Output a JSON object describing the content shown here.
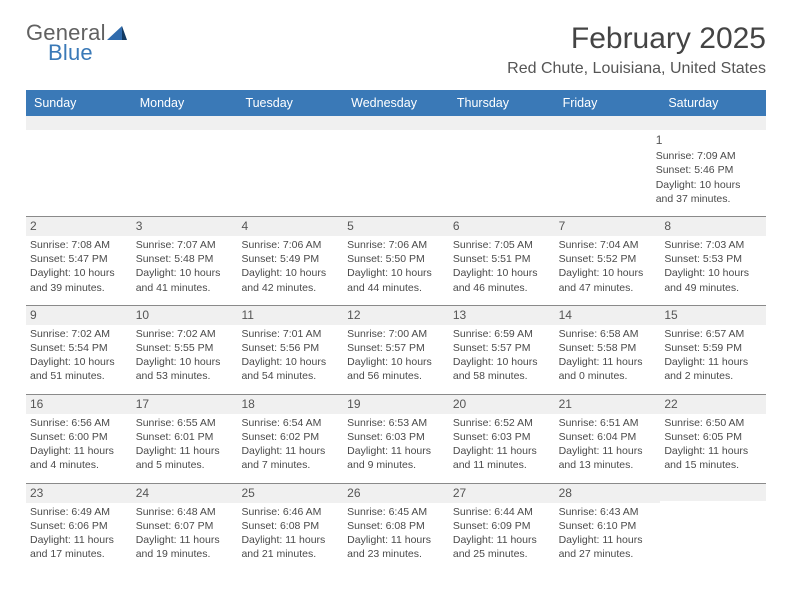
{
  "logo": {
    "general": "General",
    "blue": "Blue"
  },
  "header": {
    "month_title": "February 2025",
    "location": "Red Chute, Louisiana, United States"
  },
  "colors": {
    "header_bg": "#3a79b7",
    "header_text": "#ffffff",
    "band_bg": "#f0f0f0",
    "band_border": "#8a8a8a",
    "body_text": "#4a4a4a"
  },
  "weekdays": [
    "Sunday",
    "Monday",
    "Tuesday",
    "Wednesday",
    "Thursday",
    "Friday",
    "Saturday"
  ],
  "weeks": [
    [
      null,
      null,
      null,
      null,
      null,
      null,
      {
        "n": "1",
        "sunrise": "Sunrise: 7:09 AM",
        "sunset": "Sunset: 5:46 PM",
        "day1": "Daylight: 10 hours",
        "day2": "and 37 minutes."
      }
    ],
    [
      {
        "n": "2",
        "sunrise": "Sunrise: 7:08 AM",
        "sunset": "Sunset: 5:47 PM",
        "day1": "Daylight: 10 hours",
        "day2": "and 39 minutes."
      },
      {
        "n": "3",
        "sunrise": "Sunrise: 7:07 AM",
        "sunset": "Sunset: 5:48 PM",
        "day1": "Daylight: 10 hours",
        "day2": "and 41 minutes."
      },
      {
        "n": "4",
        "sunrise": "Sunrise: 7:06 AM",
        "sunset": "Sunset: 5:49 PM",
        "day1": "Daylight: 10 hours",
        "day2": "and 42 minutes."
      },
      {
        "n": "5",
        "sunrise": "Sunrise: 7:06 AM",
        "sunset": "Sunset: 5:50 PM",
        "day1": "Daylight: 10 hours",
        "day2": "and 44 minutes."
      },
      {
        "n": "6",
        "sunrise": "Sunrise: 7:05 AM",
        "sunset": "Sunset: 5:51 PM",
        "day1": "Daylight: 10 hours",
        "day2": "and 46 minutes."
      },
      {
        "n": "7",
        "sunrise": "Sunrise: 7:04 AM",
        "sunset": "Sunset: 5:52 PM",
        "day1": "Daylight: 10 hours",
        "day2": "and 47 minutes."
      },
      {
        "n": "8",
        "sunrise": "Sunrise: 7:03 AM",
        "sunset": "Sunset: 5:53 PM",
        "day1": "Daylight: 10 hours",
        "day2": "and 49 minutes."
      }
    ],
    [
      {
        "n": "9",
        "sunrise": "Sunrise: 7:02 AM",
        "sunset": "Sunset: 5:54 PM",
        "day1": "Daylight: 10 hours",
        "day2": "and 51 minutes."
      },
      {
        "n": "10",
        "sunrise": "Sunrise: 7:02 AM",
        "sunset": "Sunset: 5:55 PM",
        "day1": "Daylight: 10 hours",
        "day2": "and 53 minutes."
      },
      {
        "n": "11",
        "sunrise": "Sunrise: 7:01 AM",
        "sunset": "Sunset: 5:56 PM",
        "day1": "Daylight: 10 hours",
        "day2": "and 54 minutes."
      },
      {
        "n": "12",
        "sunrise": "Sunrise: 7:00 AM",
        "sunset": "Sunset: 5:57 PM",
        "day1": "Daylight: 10 hours",
        "day2": "and 56 minutes."
      },
      {
        "n": "13",
        "sunrise": "Sunrise: 6:59 AM",
        "sunset": "Sunset: 5:57 PM",
        "day1": "Daylight: 10 hours",
        "day2": "and 58 minutes."
      },
      {
        "n": "14",
        "sunrise": "Sunrise: 6:58 AM",
        "sunset": "Sunset: 5:58 PM",
        "day1": "Daylight: 11 hours",
        "day2": "and 0 minutes."
      },
      {
        "n": "15",
        "sunrise": "Sunrise: 6:57 AM",
        "sunset": "Sunset: 5:59 PM",
        "day1": "Daylight: 11 hours",
        "day2": "and 2 minutes."
      }
    ],
    [
      {
        "n": "16",
        "sunrise": "Sunrise: 6:56 AM",
        "sunset": "Sunset: 6:00 PM",
        "day1": "Daylight: 11 hours",
        "day2": "and 4 minutes."
      },
      {
        "n": "17",
        "sunrise": "Sunrise: 6:55 AM",
        "sunset": "Sunset: 6:01 PM",
        "day1": "Daylight: 11 hours",
        "day2": "and 5 minutes."
      },
      {
        "n": "18",
        "sunrise": "Sunrise: 6:54 AM",
        "sunset": "Sunset: 6:02 PM",
        "day1": "Daylight: 11 hours",
        "day2": "and 7 minutes."
      },
      {
        "n": "19",
        "sunrise": "Sunrise: 6:53 AM",
        "sunset": "Sunset: 6:03 PM",
        "day1": "Daylight: 11 hours",
        "day2": "and 9 minutes."
      },
      {
        "n": "20",
        "sunrise": "Sunrise: 6:52 AM",
        "sunset": "Sunset: 6:03 PM",
        "day1": "Daylight: 11 hours",
        "day2": "and 11 minutes."
      },
      {
        "n": "21",
        "sunrise": "Sunrise: 6:51 AM",
        "sunset": "Sunset: 6:04 PM",
        "day1": "Daylight: 11 hours",
        "day2": "and 13 minutes."
      },
      {
        "n": "22",
        "sunrise": "Sunrise: 6:50 AM",
        "sunset": "Sunset: 6:05 PM",
        "day1": "Daylight: 11 hours",
        "day2": "and 15 minutes."
      }
    ],
    [
      {
        "n": "23",
        "sunrise": "Sunrise: 6:49 AM",
        "sunset": "Sunset: 6:06 PM",
        "day1": "Daylight: 11 hours",
        "day2": "and 17 minutes."
      },
      {
        "n": "24",
        "sunrise": "Sunrise: 6:48 AM",
        "sunset": "Sunset: 6:07 PM",
        "day1": "Daylight: 11 hours",
        "day2": "and 19 minutes."
      },
      {
        "n": "25",
        "sunrise": "Sunrise: 6:46 AM",
        "sunset": "Sunset: 6:08 PM",
        "day1": "Daylight: 11 hours",
        "day2": "and 21 minutes."
      },
      {
        "n": "26",
        "sunrise": "Sunrise: 6:45 AM",
        "sunset": "Sunset: 6:08 PM",
        "day1": "Daylight: 11 hours",
        "day2": "and 23 minutes."
      },
      {
        "n": "27",
        "sunrise": "Sunrise: 6:44 AM",
        "sunset": "Sunset: 6:09 PM",
        "day1": "Daylight: 11 hours",
        "day2": "and 25 minutes."
      },
      {
        "n": "28",
        "sunrise": "Sunrise: 6:43 AM",
        "sunset": "Sunset: 6:10 PM",
        "day1": "Daylight: 11 hours",
        "day2": "and 27 minutes."
      },
      null
    ]
  ]
}
